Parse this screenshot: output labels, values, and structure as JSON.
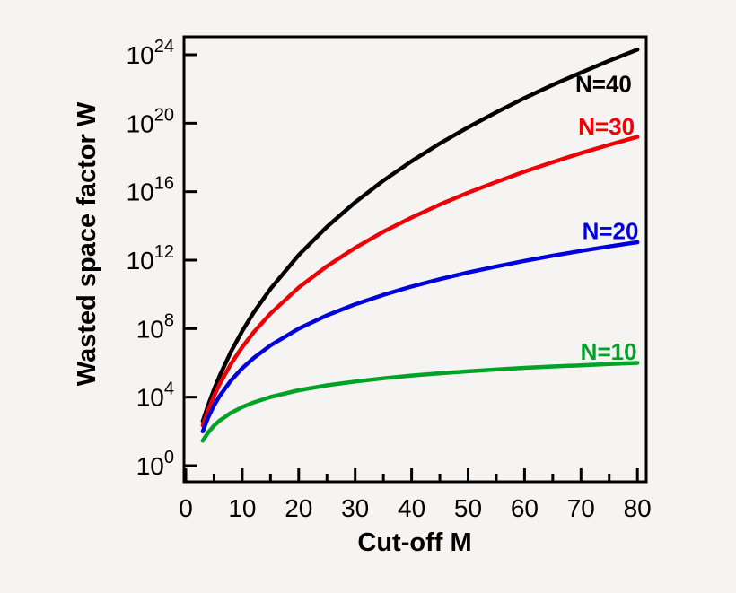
{
  "figure": {
    "background_color": "#f5f4f2",
    "axis_color": "#000000"
  },
  "chart_data": {
    "type": "line",
    "title": "",
    "xlabel": "Cut-off M",
    "ylabel": "Wasted space factor W",
    "x_scale": "linear",
    "y_scale": "log10",
    "xlim": [
      0,
      80
    ],
    "ylim_exponents": [
      0,
      24
    ],
    "grid": false,
    "legend_position": "inline-right-of-plot",
    "x_major_ticks": [
      0,
      10,
      20,
      30,
      40,
      50,
      60,
      70,
      80
    ],
    "x_minor_ticks": [
      5,
      15,
      25,
      35,
      45,
      55,
      65,
      75
    ],
    "y_tick_base": "10",
    "y_tick_exponents": [
      0,
      4,
      8,
      12,
      16,
      20,
      24
    ],
    "x": [
      3,
      4,
      5,
      6,
      8,
      10,
      12,
      15,
      20,
      25,
      30,
      35,
      40,
      45,
      50,
      55,
      60,
      65,
      70,
      75,
      80
    ],
    "series": [
      {
        "name": "N40",
        "label": "N=40",
        "color": "#000000",
        "log10_values": [
          2.6,
          3.57,
          4.45,
          5.24,
          6.65,
          7.86,
          8.93,
          10.33,
          12.3,
          13.95,
          15.38,
          16.65,
          17.78,
          18.82,
          19.76,
          20.64,
          21.47,
          22.24,
          22.96,
          23.65,
          24.3
        ],
        "label_at": {
          "M": 74.0,
          "exp": 22.3
        }
      },
      {
        "name": "N30",
        "label": "N=30",
        "color": "#ee0004",
        "log10_values": [
          2.35,
          3.27,
          4.06,
          4.76,
          5.94,
          6.92,
          7.78,
          8.88,
          10.4,
          11.65,
          12.72,
          13.66,
          14.49,
          15.25,
          15.94,
          16.57,
          17.17,
          17.73,
          18.25,
          18.74,
          19.2
        ],
        "label_at": {
          "M": 74.5,
          "exp": 19.8
        }
      },
      {
        "name": "N20",
        "label": "N=20",
        "color": "#0000dd",
        "log10_values": [
          2.0,
          2.85,
          3.51,
          4.07,
          4.97,
          5.69,
          6.28,
          7.02,
          8.0,
          8.78,
          9.42,
          9.97,
          10.46,
          10.89,
          11.28,
          11.63,
          11.96,
          12.26,
          12.54,
          12.8,
          13.05
        ],
        "label_at": {
          "M": 75.2,
          "exp": 13.7
        }
      },
      {
        "name": "N10",
        "label": "N=10",
        "color": "#00a326",
        "log10_values": [
          1.45,
          1.95,
          2.33,
          2.63,
          3.08,
          3.42,
          3.69,
          4.01,
          4.4,
          4.69,
          4.91,
          5.1,
          5.26,
          5.39,
          5.51,
          5.61,
          5.71,
          5.79,
          5.86,
          5.93,
          6.0
        ],
        "label_at": {
          "M": 74.9,
          "exp": 6.65
        }
      }
    ]
  }
}
